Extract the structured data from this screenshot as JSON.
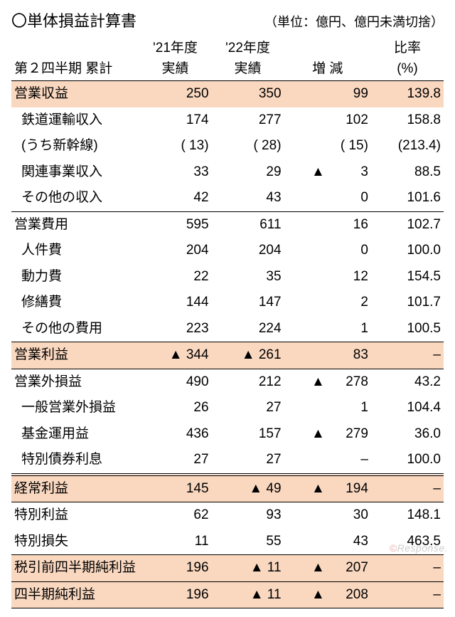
{
  "title": "〇単体損益計算書",
  "unit": "（単位：億円、億円未満切捨）",
  "columns": {
    "label": "第２四半期 累計",
    "y21": "'21年度\n実績",
    "y22": "'22年度\n実績",
    "diff": "増 減",
    "ratio": "比率\n(%)"
  },
  "triangle": "▲",
  "rows": [
    {
      "label": "営業収益",
      "indent": 0,
      "y21": "250",
      "y22": "350",
      "diff": "99",
      "neg": false,
      "ratio": "139.8",
      "highlight": true,
      "border": "none"
    },
    {
      "label": "鉄道運輸収入",
      "indent": 1,
      "y21": "174",
      "y22": "277",
      "diff": "102",
      "neg": false,
      "ratio": "158.8",
      "highlight": false,
      "border": "none"
    },
    {
      "label": "(うち新幹線)",
      "indent": 1,
      "y21": "(  13)",
      "y22": "(  28)",
      "diff": "(  15)",
      "neg": false,
      "ratio": "(213.4)",
      "highlight": false,
      "border": "none",
      "diffRaw": true
    },
    {
      "label": "関連事業収入",
      "indent": 1,
      "y21": "33",
      "y22": "29",
      "diff": "3",
      "neg": true,
      "ratio": "88.5",
      "highlight": false,
      "border": "none"
    },
    {
      "label": "その他の収入",
      "indent": 1,
      "y21": "42",
      "y22": "43",
      "diff": "0",
      "neg": false,
      "ratio": "101.6",
      "highlight": false,
      "border": "none"
    },
    {
      "label": "営業費用",
      "indent": 0,
      "y21": "595",
      "y22": "611",
      "diff": "16",
      "neg": false,
      "ratio": "102.7",
      "highlight": false,
      "border": "top"
    },
    {
      "label": "人件費",
      "indent": 1,
      "y21": "204",
      "y22": "204",
      "diff": "0",
      "neg": false,
      "ratio": "100.0",
      "highlight": false,
      "border": "none"
    },
    {
      "label": "動力費",
      "indent": 1,
      "y21": "22",
      "y22": "35",
      "diff": "12",
      "neg": false,
      "ratio": "154.5",
      "highlight": false,
      "border": "none"
    },
    {
      "label": "修繕費",
      "indent": 1,
      "y21": "144",
      "y22": "147",
      "diff": "2",
      "neg": false,
      "ratio": "101.7",
      "highlight": false,
      "border": "none"
    },
    {
      "label": "その他の費用",
      "indent": 1,
      "y21": "223",
      "y22": "224",
      "diff": "1",
      "neg": false,
      "ratio": "100.5",
      "highlight": false,
      "border": "none"
    },
    {
      "label": "営業利益",
      "indent": 0,
      "y21": "▲  344",
      "y22": "▲  261",
      "diff": "83",
      "neg": false,
      "ratio": "–",
      "highlight": true,
      "border": "top"
    },
    {
      "label": "営業外損益",
      "indent": 0,
      "y21": "490",
      "y22": "212",
      "diff": "278",
      "neg": true,
      "ratio": "43.2",
      "highlight": false,
      "border": "top"
    },
    {
      "label": "一般営業外損益",
      "indent": 1,
      "y21": "26",
      "y22": "27",
      "diff": "1",
      "neg": false,
      "ratio": "104.4",
      "highlight": false,
      "border": "none"
    },
    {
      "label": "基金運用益",
      "indent": 1,
      "y21": "436",
      "y22": "157",
      "diff": "279",
      "neg": true,
      "ratio": "36.0",
      "highlight": false,
      "border": "none"
    },
    {
      "label": "特別債券利息",
      "indent": 1,
      "y21": "27",
      "y22": "27",
      "diff": "–",
      "neg": false,
      "ratio": "100.0",
      "highlight": false,
      "border": "none",
      "diffRaw": true
    },
    {
      "label": "経常利益",
      "indent": 0,
      "y21": "145",
      "y22": "▲   49",
      "diff": "194",
      "neg": true,
      "ratio": "–",
      "highlight": true,
      "border": "double"
    },
    {
      "label": "特別利益",
      "indent": 0,
      "y21": "62",
      "y22": "93",
      "diff": "30",
      "neg": false,
      "ratio": "148.1",
      "highlight": false,
      "border": "top"
    },
    {
      "label": "特別損失",
      "indent": 0,
      "y21": "11",
      "y22": "55",
      "diff": "43",
      "neg": false,
      "ratio": "463.5",
      "highlight": false,
      "border": "none"
    },
    {
      "label": "税引前四半期純利益",
      "indent": 0,
      "y21": "196",
      "y22": "▲   11",
      "diff": "207",
      "neg": true,
      "ratio": "–",
      "highlight": true,
      "border": "top"
    },
    {
      "label": "四半期純利益",
      "indent": 0,
      "y21": "196",
      "y22": "▲   11",
      "diff": "208",
      "neg": true,
      "ratio": "–",
      "highlight": true,
      "border": "top",
      "borderBottom": true
    }
  ],
  "watermark": {
    "left": "©",
    "right": "Response."
  },
  "style": {
    "highlight_bg": "#fad8c0",
    "text_color": "#000000",
    "font_size_pt": 14
  }
}
